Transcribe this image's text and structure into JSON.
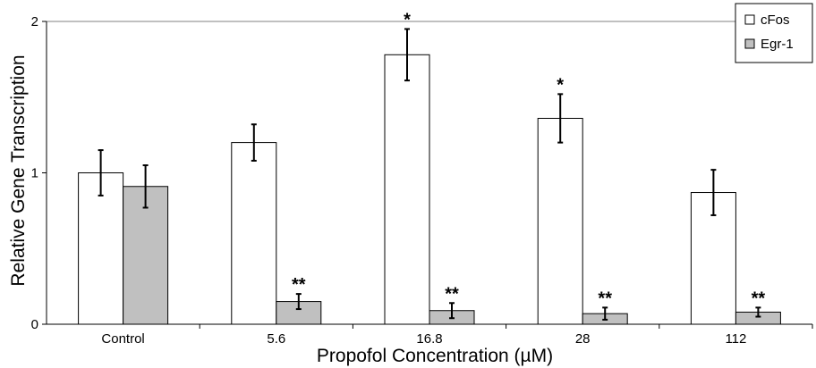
{
  "chart_data": {
    "type": "bar",
    "title": "",
    "xlabel": "Propofol Concentration (µM)",
    "ylabel": "Relative Gene Transcription",
    "ylim": [
      0,
      2
    ],
    "yticks": [
      "0",
      "1",
      "2"
    ],
    "categories": [
      "Control",
      "5.6",
      "16.8",
      "28",
      "112"
    ],
    "series": [
      {
        "name": "cFos",
        "color": "#ffffff",
        "values": [
          1.0,
          1.2,
          1.78,
          1.36,
          0.87
        ],
        "errors": [
          0.15,
          0.12,
          0.17,
          0.16,
          0.15
        ],
        "annotations": [
          "",
          "",
          "*",
          "*",
          ""
        ]
      },
      {
        "name": "Egr-1",
        "color": "#c0c0c0",
        "values": [
          0.91,
          0.15,
          0.09,
          0.07,
          0.08
        ],
        "errors": [
          0.14,
          0.05,
          0.05,
          0.04,
          0.03
        ],
        "annotations": [
          "",
          "**",
          "**",
          "**",
          "**"
        ]
      }
    ],
    "grid": false,
    "legend_position": "top-right"
  }
}
